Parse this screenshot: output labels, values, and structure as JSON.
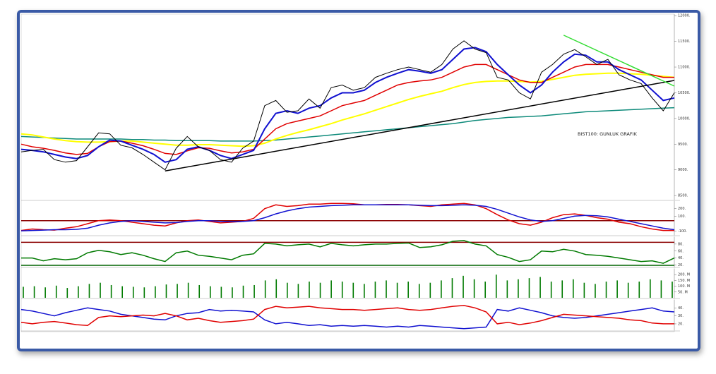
{
  "chart_data": [
    {
      "type": "line",
      "annotation": "BIST100: GUNLUK GRAFIK",
      "ylim": [
        8420,
        12030
      ],
      "yticks": [
        {
          "value": 12000,
          "label": "12000."
        },
        {
          "value": 11500,
          "label": "11500."
        },
        {
          "value": 11000,
          "label": "11000."
        },
        {
          "value": 10500,
          "label": "10500."
        },
        {
          "value": 10000,
          "label": "10000."
        },
        {
          "value": 9500,
          "label": "9500."
        },
        {
          "value": 9000,
          "label": "9000."
        },
        {
          "value": 8500,
          "label": "8500."
        }
      ],
      "series": [
        {
          "color": "#0d8a7a",
          "width": 1.5,
          "values": [
            9650,
            9640,
            9630,
            9620,
            9610,
            9600,
            9600,
            9600,
            9600,
            9600,
            9590,
            9590,
            9580,
            9580,
            9570,
            9570,
            9570,
            9570,
            9560,
            9560,
            9560,
            9560,
            9570,
            9580,
            9600,
            9620,
            9640,
            9660,
            9680,
            9700,
            9720,
            9740,
            9760,
            9780,
            9800,
            9820,
            9840,
            9860,
            9880,
            9900,
            9930,
            9960,
            9980,
            10000,
            10020,
            10030,
            10040,
            10050,
            10070,
            10090,
            10110,
            10130,
            10140,
            10150,
            10160,
            10170,
            10180,
            10190,
            10200,
            10210
          ]
        },
        {
          "color": "#ffff00",
          "width": 2,
          "values": [
            9700,
            9680,
            9640,
            9600,
            9570,
            9550,
            9540,
            9540,
            9550,
            9560,
            9560,
            9540,
            9520,
            9500,
            9480,
            9480,
            9490,
            9490,
            9480,
            9470,
            9460,
            9470,
            9520,
            9600,
            9670,
            9730,
            9780,
            9840,
            9900,
            9970,
            10030,
            10090,
            10160,
            10230,
            10300,
            10370,
            10430,
            10480,
            10530,
            10600,
            10660,
            10700,
            10720,
            10730,
            10730,
            10720,
            10710,
            10720,
            10760,
            10800,
            10840,
            10860,
            10870,
            10880,
            10880,
            10870,
            10860,
            10840,
            10820,
            10800
          ]
        },
        {
          "color": "#e00000",
          "width": 1.5,
          "values": [
            9500,
            9450,
            9420,
            9380,
            9330,
            9300,
            9320,
            9450,
            9550,
            9560,
            9520,
            9470,
            9400,
            9320,
            9300,
            9370,
            9430,
            9420,
            9370,
            9330,
            9350,
            9400,
            9600,
            9800,
            9900,
            9950,
            10000,
            10050,
            10150,
            10250,
            10300,
            10350,
            10450,
            10550,
            10650,
            10700,
            10730,
            10750,
            10800,
            10900,
            11000,
            11050,
            11050,
            10950,
            10850,
            10750,
            10700,
            10700,
            10800,
            10900,
            11000,
            11050,
            11050,
            11050,
            11000,
            10950,
            10900,
            10850,
            10800,
            10800
          ]
        },
        {
          "color": "#1010d0",
          "width": 2,
          "values": [
            9400,
            9380,
            9350,
            9300,
            9250,
            9220,
            9280,
            9450,
            9580,
            9560,
            9480,
            9400,
            9300,
            9150,
            9200,
            9400,
            9450,
            9380,
            9280,
            9220,
            9300,
            9380,
            9800,
            10100,
            10150,
            10100,
            10200,
            10250,
            10400,
            10500,
            10500,
            10550,
            10700,
            10800,
            10880,
            10950,
            10920,
            10880,
            10950,
            11150,
            11350,
            11380,
            11300,
            11050,
            10850,
            10650,
            10500,
            10650,
            10900,
            11100,
            11250,
            11230,
            11100,
            11100,
            10950,
            10850,
            10750,
            10550,
            10350,
            10400
          ]
        },
        {
          "color": "#000000",
          "width": 1,
          "values": [
            9350,
            9380,
            9400,
            9200,
            9150,
            9180,
            9450,
            9720,
            9700,
            9480,
            9430,
            9300,
            9150,
            9000,
            9420,
            9650,
            9450,
            9380,
            9200,
            9150,
            9420,
            9560,
            10250,
            10350,
            10120,
            10150,
            10380,
            10200,
            10600,
            10650,
            10550,
            10600,
            10800,
            10880,
            10950,
            11000,
            10950,
            10900,
            11050,
            11350,
            11510,
            11350,
            11280,
            10800,
            10750,
            10500,
            10380,
            10900,
            11050,
            11250,
            11340,
            11200,
            11050,
            11150,
            10850,
            10750,
            10680,
            10400,
            10150,
            10500
          ]
        }
      ],
      "trendlines": [
        {
          "color": "#000000",
          "x": [
            13,
            59
          ],
          "y": [
            8980,
            10740
          ]
        },
        {
          "color": "#33dd33",
          "x": [
            49,
            59
          ],
          "y": [
            11620,
            10630
          ]
        }
      ]
    },
    {
      "type": "line",
      "ylim": [
        -150,
        300
      ],
      "yticks": [
        {
          "value": 200,
          "label": "200."
        },
        {
          "value": 100,
          "label": "100."
        },
        {
          "value": -100,
          "label": "-100."
        }
      ],
      "hlines": [
        {
          "value": 40,
          "color": "#8b0000"
        }
      ],
      "series": [
        {
          "color": "#e00000",
          "width": 1.5,
          "values": [
            -90,
            -70,
            -80,
            -85,
            -60,
            -40,
            0,
            40,
            50,
            40,
            20,
            0,
            -20,
            -30,
            10,
            40,
            50,
            30,
            10,
            20,
            30,
            70,
            200,
            250,
            230,
            240,
            260,
            260,
            270,
            270,
            265,
            250,
            250,
            255,
            255,
            250,
            240,
            230,
            250,
            260,
            270,
            250,
            200,
            120,
            50,
            0,
            -20,
            20,
            80,
            120,
            130,
            110,
            80,
            60,
            20,
            0,
            -40,
            -70,
            -90,
            -90
          ]
        },
        {
          "color": "#1010d0",
          "width": 1.5,
          "values": [
            -95,
            -90,
            -85,
            -80,
            -80,
            -75,
            -60,
            -20,
            10,
            30,
            40,
            30,
            20,
            10,
            15,
            30,
            40,
            40,
            30,
            25,
            30,
            40,
            80,
            130,
            170,
            200,
            220,
            230,
            240,
            245,
            250,
            250,
            250,
            250,
            250,
            250,
            245,
            240,
            240,
            245,
            250,
            245,
            230,
            190,
            140,
            90,
            50,
            30,
            40,
            70,
            100,
            110,
            105,
            90,
            60,
            30,
            0,
            -30,
            -60,
            -80
          ]
        }
      ]
    },
    {
      "type": "line",
      "ylim": [
        15,
        100
      ],
      "yticks": [
        {
          "value": 80,
          "label": "80."
        },
        {
          "value": 60,
          "label": "60."
        },
        {
          "value": 40,
          "label": "40."
        },
        {
          "value": 20,
          "label": "20."
        }
      ],
      "hlines": [
        {
          "value": 85,
          "color": "#8b0000"
        },
        {
          "value": 19,
          "color": "#006400"
        }
      ],
      "series": [
        {
          "color": "#007a00",
          "width": 1.5,
          "values": [
            40,
            40,
            32,
            38,
            35,
            38,
            55,
            62,
            58,
            50,
            55,
            48,
            38,
            30,
            55,
            60,
            48,
            45,
            40,
            35,
            48,
            52,
            82,
            80,
            75,
            78,
            80,
            72,
            82,
            78,
            75,
            78,
            80,
            80,
            82,
            83,
            70,
            72,
            78,
            88,
            90,
            80,
            75,
            50,
            42,
            30,
            35,
            60,
            58,
            65,
            60,
            50,
            48,
            45,
            40,
            35,
            30,
            32,
            25,
            40
          ]
        }
      ]
    },
    {
      "type": "bar",
      "color": "#007a00",
      "ylim": [
        0,
        250
      ],
      "yticks": [
        {
          "value": 200,
          "label": "200. M"
        },
        {
          "value": 150,
          "label": "150. M"
        },
        {
          "value": 100,
          "label": "100. M"
        },
        {
          "value": 50,
          "label": "50. M"
        }
      ],
      "values": [
        95,
        100,
        90,
        105,
        85,
        100,
        120,
        130,
        110,
        100,
        95,
        90,
        100,
        115,
        120,
        130,
        110,
        100,
        95,
        90,
        105,
        110,
        150,
        160,
        130,
        120,
        140,
        130,
        150,
        140,
        130,
        120,
        140,
        150,
        130,
        140,
        120,
        130,
        150,
        170,
        190,
        160,
        140,
        200,
        150,
        160,
        170,
        180,
        140,
        150,
        160,
        130,
        120,
        140,
        150,
        130,
        140,
        160,
        150,
        140
      ]
    },
    {
      "type": "line",
      "ylim": [
        12,
        50
      ],
      "yticks": [
        {
          "value": 40,
          "label": "40."
        },
        {
          "value": 30,
          "label": "30."
        },
        {
          "value": 20,
          "label": "20."
        }
      ],
      "series": [
        {
          "color": "#1010d0",
          "width": 1.5,
          "values": [
            38,
            36,
            33,
            30,
            34,
            37,
            40,
            38,
            36,
            32,
            30,
            28,
            26,
            25,
            30,
            33,
            34,
            38,
            36,
            37,
            36,
            35,
            25,
            20,
            22,
            20,
            18,
            19,
            17,
            18,
            17,
            18,
            17,
            16,
            17,
            16,
            18,
            17,
            16,
            15,
            14,
            15,
            16,
            38,
            36,
            40,
            37,
            34,
            30,
            28,
            27,
            28,
            30,
            32,
            34,
            36,
            38,
            40,
            36,
            35
          ]
        },
        {
          "color": "#e00000",
          "width": 1.5,
          "values": [
            22,
            20,
            22,
            23,
            21,
            19,
            18,
            28,
            30,
            29,
            30,
            31,
            30,
            33,
            30,
            25,
            27,
            24,
            22,
            23,
            24,
            26,
            38,
            42,
            40,
            41,
            42,
            40,
            39,
            38,
            38,
            37,
            38,
            39,
            40,
            38,
            37,
            38,
            40,
            42,
            43,
            40,
            35,
            20,
            22,
            19,
            21,
            24,
            28,
            32,
            31,
            30,
            29,
            28,
            27,
            25,
            24,
            21,
            20,
            20
          ]
        }
      ]
    }
  ]
}
